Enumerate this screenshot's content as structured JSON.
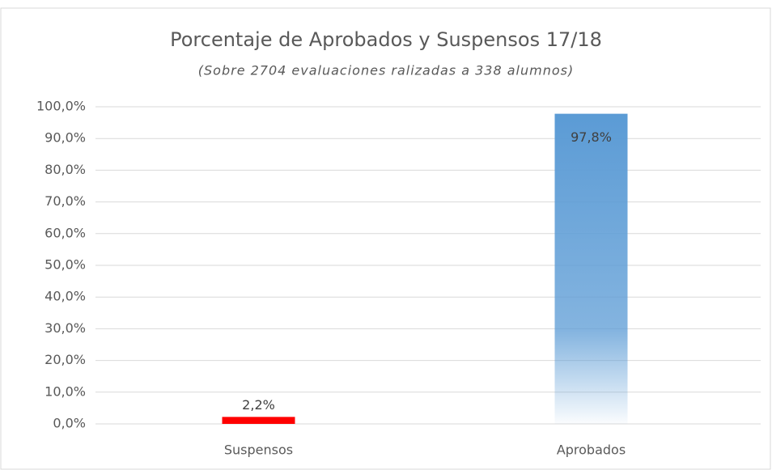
{
  "chart_data": {
    "type": "bar",
    "title": "Porcentaje de Aprobados y Suspensos 17/18",
    "subtitle": "(Sobre 2704 evaluaciones ralizadas a 338 alumnos)",
    "categories": [
      "Suspensos",
      "Aprobados"
    ],
    "values": [
      2.2,
      97.8
    ],
    "value_labels": [
      "2,2%",
      "97,8%"
    ],
    "colors": [
      "#ff0000",
      "#5b9bd5"
    ],
    "ylim": [
      0,
      100
    ],
    "yticks": [
      {
        "value": 0,
        "label": "0,0%"
      },
      {
        "value": 10,
        "label": "10,0%"
      },
      {
        "value": 20,
        "label": "20,0%"
      },
      {
        "value": 30,
        "label": "30,0%"
      },
      {
        "value": 40,
        "label": "40,0%"
      },
      {
        "value": 50,
        "label": "50,0%"
      },
      {
        "value": 60,
        "label": "60,0%"
      },
      {
        "value": 70,
        "label": "70,0%"
      },
      {
        "value": 80,
        "label": "80,0%"
      },
      {
        "value": 90,
        "label": "90,0%"
      },
      {
        "value": 100,
        "label": "100,0%"
      }
    ],
    "grid": true
  }
}
